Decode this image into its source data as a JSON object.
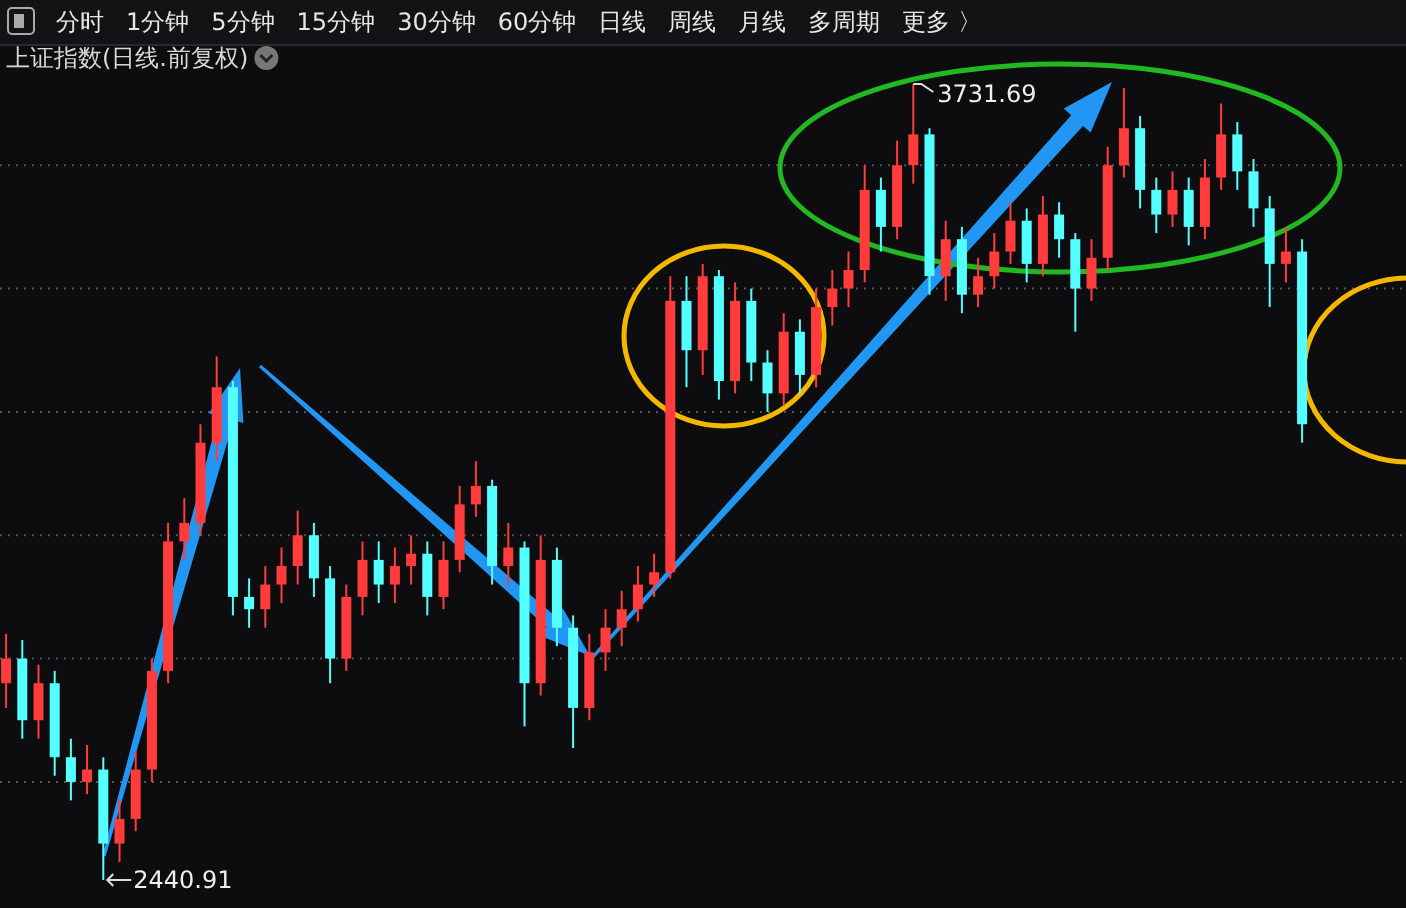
{
  "chart_data": {
    "type": "candlestick",
    "title": "上证指数(日线.前复权)",
    "categories": [
      null,
      null,
      null,
      null,
      null,
      null,
      null,
      null,
      null,
      null,
      null,
      null,
      null,
      null,
      null,
      null,
      null,
      null,
      null,
      null,
      null,
      null,
      null,
      null,
      null,
      null,
      null,
      null,
      null,
      null,
      null,
      null,
      null,
      null,
      null,
      null,
      null,
      null,
      null,
      null,
      null,
      null,
      null,
      null,
      null,
      null,
      null,
      null,
      null,
      null,
      null,
      null,
      null,
      null,
      null,
      null,
      null,
      null,
      null,
      null,
      null,
      null,
      null,
      null,
      null,
      null,
      null,
      null,
      null,
      null,
      null,
      null,
      null,
      null,
      null,
      null,
      null,
      null,
      null,
      null,
      null
    ],
    "ohlc": [
      [
        2760,
        2840,
        2720,
        2800
      ],
      [
        2800,
        2830,
        2670,
        2700
      ],
      [
        2700,
        2790,
        2670,
        2760
      ],
      [
        2760,
        2780,
        2610,
        2640
      ],
      [
        2640,
        2670,
        2570,
        2600
      ],
      [
        2600,
        2660,
        2580,
        2620
      ],
      [
        2620,
        2640,
        2440.91,
        2500
      ],
      [
        2500,
        2570,
        2470,
        2540
      ],
      [
        2540,
        2650,
        2520,
        2620
      ],
      [
        2620,
        2800,
        2600,
        2780
      ],
      [
        2780,
        3020,
        2760,
        2990
      ],
      [
        2990,
        3060,
        2960,
        3020
      ],
      [
        3020,
        3180,
        3000,
        3150
      ],
      [
        3150,
        3290,
        3120,
        3240
      ],
      [
        3240,
        3250,
        2870,
        2900
      ],
      [
        2900,
        2930,
        2850,
        2880
      ],
      [
        2880,
        2950,
        2850,
        2920
      ],
      [
        2920,
        2980,
        2890,
        2950
      ],
      [
        2950,
        3040,
        2920,
        3000
      ],
      [
        3000,
        3020,
        2900,
        2930
      ],
      [
        2930,
        2950,
        2760,
        2800
      ],
      [
        2800,
        2920,
        2780,
        2900
      ],
      [
        2900,
        2990,
        2870,
        2960
      ],
      [
        2960,
        2990,
        2890,
        2920
      ],
      [
        2920,
        2980,
        2890,
        2950
      ],
      [
        2950,
        3000,
        2920,
        2970
      ],
      [
        2970,
        2990,
        2870,
        2900
      ],
      [
        2900,
        2990,
        2880,
        2960
      ],
      [
        2960,
        3080,
        2940,
        3050
      ],
      [
        3050,
        3120,
        3030,
        3080
      ],
      [
        3080,
        3090,
        2920,
        2950
      ],
      [
        2950,
        3020,
        2920,
        2980
      ],
      [
        2980,
        2990,
        2690,
        2760
      ],
      [
        2760,
        3000,
        2740,
        2960
      ],
      [
        2960,
        2980,
        2820,
        2850
      ],
      [
        2850,
        2870,
        2655,
        2720
      ],
      [
        2720,
        2840,
        2700,
        2810
      ],
      [
        2810,
        2880,
        2780,
        2850
      ],
      [
        2850,
        2910,
        2820,
        2880
      ],
      [
        2880,
        2950,
        2860,
        2920
      ],
      [
        2920,
        2970,
        2900,
        2940
      ],
      [
        2940,
        3420,
        2930,
        3380
      ],
      [
        3380,
        3420,
        3240,
        3300
      ],
      [
        3300,
        3440,
        3260,
        3420
      ],
      [
        3420,
        3430,
        3220,
        3250
      ],
      [
        3250,
        3410,
        3230,
        3380
      ],
      [
        3380,
        3400,
        3250,
        3280
      ],
      [
        3280,
        3300,
        3200,
        3230
      ],
      [
        3230,
        3360,
        3210,
        3330
      ],
      [
        3330,
        3350,
        3230,
        3260
      ],
      [
        3260,
        3400,
        3240,
        3370
      ],
      [
        3370,
        3430,
        3340,
        3400
      ],
      [
        3400,
        3460,
        3370,
        3430
      ],
      [
        3430,
        3600,
        3410,
        3560
      ],
      [
        3560,
        3580,
        3460,
        3500
      ],
      [
        3500,
        3640,
        3480,
        3600
      ],
      [
        3600,
        3731.69,
        3570,
        3650
      ],
      [
        3650,
        3660,
        3390,
        3420
      ],
      [
        3420,
        3510,
        3380,
        3480
      ],
      [
        3480,
        3500,
        3360,
        3390
      ],
      [
        3390,
        3450,
        3370,
        3420
      ],
      [
        3420,
        3490,
        3400,
        3460
      ],
      [
        3460,
        3540,
        3440,
        3510
      ],
      [
        3510,
        3530,
        3410,
        3440
      ],
      [
        3440,
        3550,
        3420,
        3520
      ],
      [
        3520,
        3540,
        3450,
        3480
      ],
      [
        3480,
        3490,
        3330,
        3400
      ],
      [
        3400,
        3480,
        3380,
        3450
      ],
      [
        3450,
        3630,
        3430,
        3600
      ],
      [
        3600,
        3725,
        3580,
        3660
      ],
      [
        3660,
        3680,
        3530,
        3560
      ],
      [
        3560,
        3580,
        3490,
        3520
      ],
      [
        3520,
        3590,
        3500,
        3560
      ],
      [
        3560,
        3580,
        3470,
        3500
      ],
      [
        3500,
        3610,
        3480,
        3580
      ],
      [
        3580,
        3700,
        3560,
        3650
      ],
      [
        3650,
        3670,
        3560,
        3590
      ],
      [
        3590,
        3610,
        3500,
        3530
      ],
      [
        3530,
        3550,
        3370,
        3440
      ],
      [
        3440,
        3500,
        3410,
        3460
      ],
      [
        3460,
        3480,
        3150,
        3180
      ]
    ],
    "yticks": [
      {
        "value": 2600,
        "label": null
      },
      {
        "value": 2800,
        "label": null
      },
      {
        "value": 3000,
        "label": null
      },
      {
        "value": 3200,
        "label": null
      },
      {
        "value": 3400,
        "label": null
      },
      {
        "value": 3600,
        "label": null
      }
    ],
    "grid": "y",
    "annotations": [
      "分时",
      "1分钟",
      "5分钟",
      "15分钟",
      "30分钟",
      "60分钟",
      "日线",
      "周线",
      "月线",
      "多周期",
      "更多 〉",
      "3731.69",
      "2440.91"
    ]
  }
}
